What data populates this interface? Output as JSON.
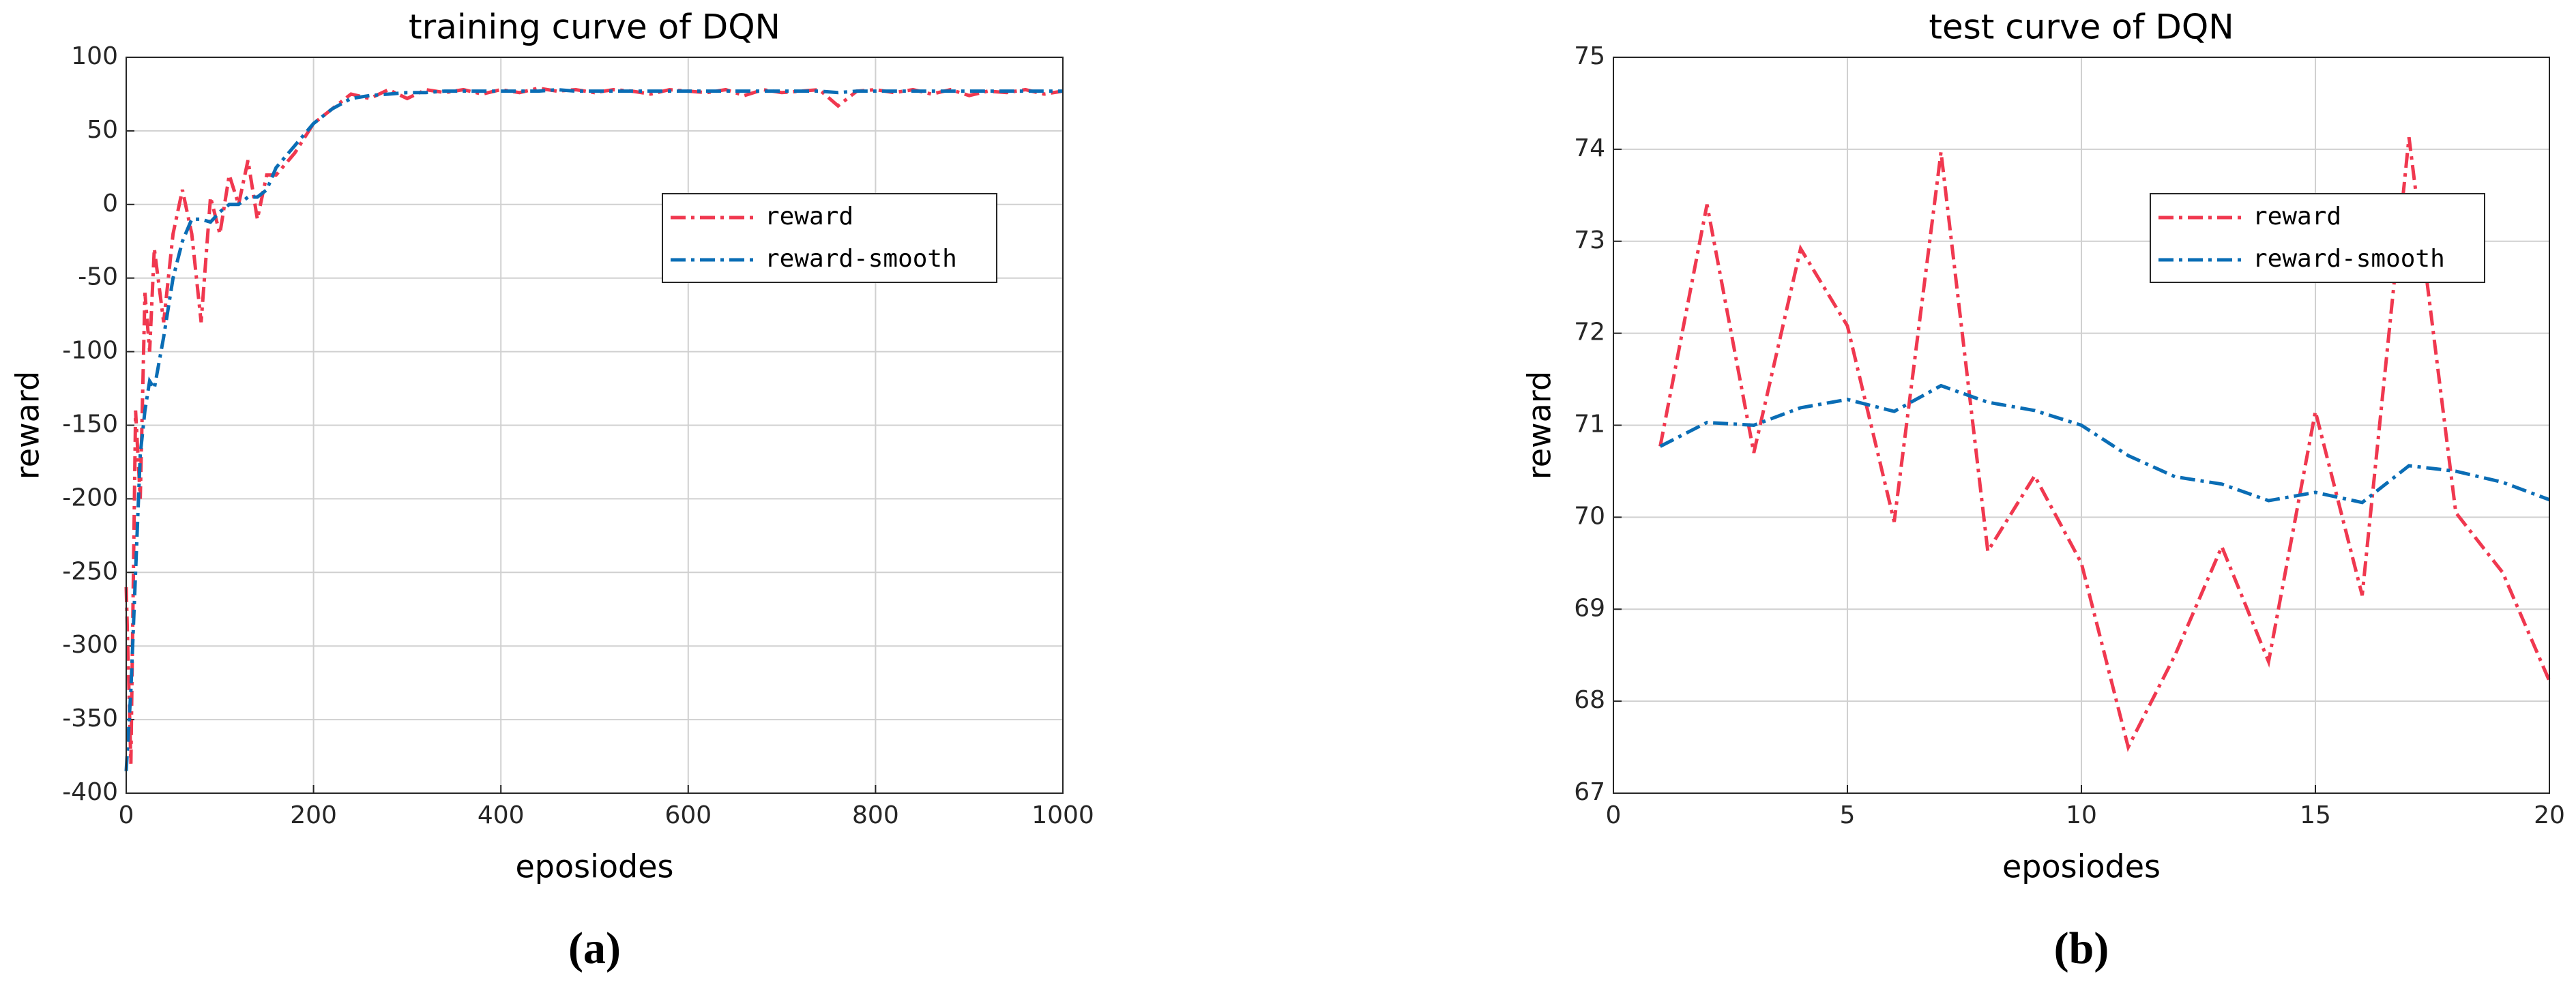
{
  "chart_data": [
    {
      "type": "line",
      "title": "training curve of DQN",
      "xlabel": "eposiodes",
      "ylabel": "reward",
      "caption": "(a)",
      "x": [
        0,
        5,
        10,
        15,
        20,
        25,
        30,
        40,
        50,
        60,
        70,
        80,
        90,
        100,
        110,
        120,
        130,
        140,
        150,
        160,
        180,
        200,
        220,
        240,
        260,
        280,
        300,
        320,
        340,
        360,
        380,
        400,
        420,
        440,
        460,
        480,
        500,
        520,
        540,
        560,
        580,
        600,
        620,
        640,
        660,
        680,
        700,
        720,
        740,
        760,
        780,
        800,
        820,
        840,
        860,
        880,
        900,
        920,
        940,
        960,
        980,
        1000
      ],
      "series": [
        {
          "name": "reward",
          "color": "#f0384f",
          "values": [
            -260,
            -380,
            -140,
            -200,
            -60,
            -100,
            -30,
            -80,
            -20,
            10,
            -20,
            -80,
            5,
            -20,
            20,
            0,
            30,
            -10,
            20,
            20,
            35,
            55,
            65,
            75,
            72,
            78,
            72,
            78,
            76,
            78,
            75,
            78,
            76,
            79,
            77,
            78,
            76,
            78,
            77,
            75,
            78,
            77,
            76,
            78,
            74,
            78,
            76,
            77,
            78,
            67,
            77,
            78,
            76,
            78,
            75,
            78,
            74,
            77,
            76,
            78,
            75,
            77
          ]
        },
        {
          "name": "reward-smooth",
          "color": "#0a6db5",
          "values": [
            -385,
            -330,
            -250,
            -170,
            -140,
            -120,
            -125,
            -90,
            -50,
            -25,
            -10,
            -10,
            -12,
            -5,
            0,
            0,
            5,
            5,
            10,
            25,
            40,
            55,
            65,
            72,
            74,
            75,
            76,
            76,
            77,
            77,
            77,
            77,
            77,
            77,
            78,
            77,
            77,
            77,
            77,
            77,
            77,
            77,
            77,
            77,
            77,
            77,
            77,
            77,
            77,
            76,
            77,
            77,
            77,
            77,
            77,
            77,
            77,
            77,
            77,
            77,
            77,
            77
          ]
        }
      ],
      "xlim": [
        0,
        1000
      ],
      "xticks": [
        0,
        200,
        400,
        600,
        800,
        1000
      ],
      "ylim": [
        -400,
        100
      ],
      "yticks": [
        -400,
        -350,
        -300,
        -250,
        -200,
        -150,
        -100,
        -50,
        0,
        50,
        100
      ],
      "grid": true,
      "legend": "upper right"
    },
    {
      "type": "line",
      "title": "test curve of DQN",
      "xlabel": "eposiodes",
      "ylabel": "reward",
      "caption": "(b)",
      "x": [
        1,
        2,
        3,
        4,
        5,
        6,
        7,
        8,
        9,
        10,
        11,
        12,
        13,
        14,
        15,
        16,
        17,
        18,
        19,
        20
      ],
      "series": [
        {
          "name": "reward",
          "color": "#f0384f",
          "values": [
            70.77,
            73.4,
            70.7,
            72.92,
            72.08,
            69.95,
            73.97,
            69.63,
            70.45,
            69.5,
            67.5,
            68.5,
            69.68,
            68.43,
            71.15,
            69.15,
            74.13,
            70.05,
            69.4,
            68.22
          ]
        },
        {
          "name": "reward-smooth",
          "color": "#0a6db5",
          "values": [
            70.77,
            71.03,
            71.0,
            71.19,
            71.28,
            71.15,
            71.43,
            71.25,
            71.16,
            71.0,
            70.67,
            70.44,
            70.36,
            70.18,
            70.27,
            70.16,
            70.56,
            70.5,
            70.38,
            70.19
          ]
        }
      ],
      "xlim": [
        0,
        20
      ],
      "xticks": [
        0,
        5,
        10,
        15,
        20
      ],
      "ylim": [
        67,
        75
      ],
      "yticks": [
        67,
        68,
        69,
        70,
        71,
        72,
        73,
        74,
        75
      ],
      "grid": true,
      "legend": "upper right"
    }
  ]
}
